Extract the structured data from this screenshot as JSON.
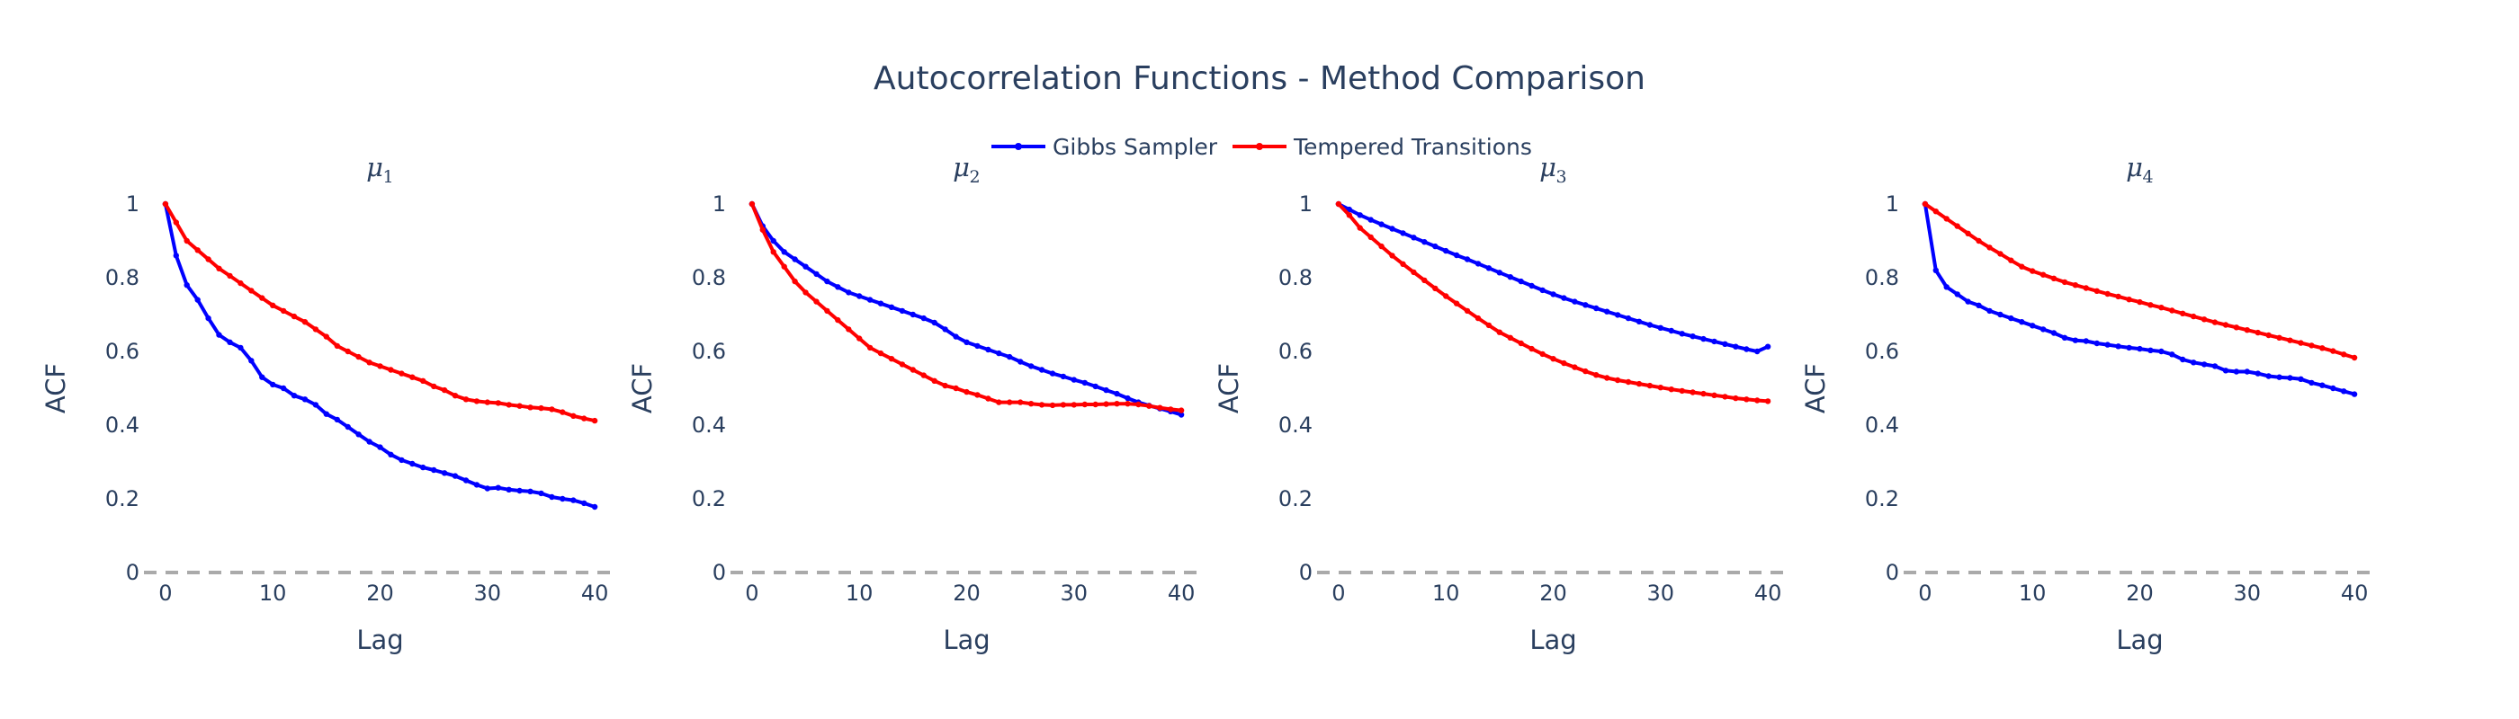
{
  "title": "Autocorrelation Functions - Method Comparison",
  "legend": [
    {
      "name": "Gibbs Sampler",
      "color": "#0000ff"
    },
    {
      "name": "Tempered Transitions",
      "color": "#ff0000"
    }
  ],
  "chart_data": [
    {
      "type": "line",
      "title_base": "μ",
      "title_sub": "1",
      "xlabel": "Lag",
      "ylabel": "ACF",
      "xlim": [
        -2,
        42
      ],
      "ylim": [
        0,
        1
      ],
      "xticks": [
        0,
        10,
        20,
        30,
        40
      ],
      "yticks": [
        0,
        0.2,
        0.4,
        0.6,
        0.8,
        1
      ],
      "ytick_labels": [
        "0",
        "0.2",
        "0.4",
        "0.6",
        "0.8",
        "1"
      ],
      "reference_line": {
        "y": 0,
        "style": "dashed"
      },
      "x": [
        0,
        1,
        2,
        3,
        4,
        5,
        6,
        7,
        8,
        9,
        10,
        11,
        12,
        13,
        14,
        15,
        16,
        17,
        18,
        19,
        20,
        21,
        22,
        23,
        24,
        25,
        26,
        27,
        28,
        29,
        30,
        31,
        32,
        33,
        34,
        35,
        36,
        37,
        38,
        39,
        40
      ],
      "series": [
        {
          "name": "Gibbs Sampler",
          "values": [
            1.0,
            0.86,
            0.78,
            0.74,
            0.69,
            0.645,
            0.625,
            0.61,
            0.575,
            0.53,
            0.51,
            0.5,
            0.48,
            0.47,
            0.455,
            0.43,
            0.415,
            0.395,
            0.375,
            0.355,
            0.34,
            0.32,
            0.305,
            0.295,
            0.285,
            0.278,
            0.27,
            0.262,
            0.25,
            0.238,
            0.228,
            0.23,
            0.225,
            0.222,
            0.22,
            0.215,
            0.205,
            0.2,
            0.196,
            0.188,
            0.178
          ]
        },
        {
          "name": "Tempered Transitions",
          "values": [
            1.0,
            0.95,
            0.9,
            0.875,
            0.85,
            0.825,
            0.805,
            0.785,
            0.765,
            0.745,
            0.725,
            0.71,
            0.695,
            0.68,
            0.66,
            0.64,
            0.615,
            0.6,
            0.585,
            0.57,
            0.56,
            0.55,
            0.54,
            0.53,
            0.52,
            0.505,
            0.495,
            0.48,
            0.47,
            0.465,
            0.462,
            0.46,
            0.455,
            0.452,
            0.448,
            0.446,
            0.443,
            0.435,
            0.425,
            0.418,
            0.412
          ]
        }
      ]
    },
    {
      "type": "line",
      "title_base": "μ",
      "title_sub": "2",
      "xlabel": "Lag",
      "ylabel": "ACF",
      "xlim": [
        -2,
        42
      ],
      "ylim": [
        0,
        1
      ],
      "xticks": [
        0,
        10,
        20,
        30,
        40
      ],
      "yticks": [
        0,
        0.2,
        0.4,
        0.6,
        0.8,
        1
      ],
      "ytick_labels": [
        "0",
        "0.2",
        "0.4",
        "0.6",
        "0.8",
        "1"
      ],
      "reference_line": {
        "y": 0,
        "style": "dashed"
      },
      "x": [
        0,
        1,
        2,
        3,
        4,
        5,
        6,
        7,
        8,
        9,
        10,
        11,
        12,
        13,
        14,
        15,
        16,
        17,
        18,
        19,
        20,
        21,
        22,
        23,
        24,
        25,
        26,
        27,
        28,
        29,
        30,
        31,
        32,
        33,
        34,
        35,
        36,
        37,
        38,
        39,
        40
      ],
      "series": [
        {
          "name": "Gibbs Sampler",
          "values": [
            1.0,
            0.94,
            0.9,
            0.87,
            0.85,
            0.83,
            0.81,
            0.79,
            0.775,
            0.76,
            0.75,
            0.74,
            0.73,
            0.72,
            0.71,
            0.7,
            0.69,
            0.678,
            0.66,
            0.64,
            0.625,
            0.615,
            0.605,
            0.595,
            0.585,
            0.572,
            0.56,
            0.55,
            0.54,
            0.532,
            0.523,
            0.515,
            0.505,
            0.495,
            0.485,
            0.473,
            0.462,
            0.453,
            0.445,
            0.437,
            0.428
          ]
        },
        {
          "name": "Tempered Transitions",
          "values": [
            1.0,
            0.93,
            0.87,
            0.83,
            0.79,
            0.76,
            0.735,
            0.71,
            0.685,
            0.66,
            0.635,
            0.61,
            0.595,
            0.58,
            0.565,
            0.55,
            0.535,
            0.52,
            0.507,
            0.5,
            0.49,
            0.482,
            0.472,
            0.462,
            0.462,
            0.462,
            0.458,
            0.455,
            0.454,
            0.455,
            0.455,
            0.456,
            0.456,
            0.457,
            0.458,
            0.458,
            0.456,
            0.452,
            0.447,
            0.443,
            0.44
          ]
        }
      ]
    },
    {
      "type": "line",
      "title_base": "μ",
      "title_sub": "3",
      "xlabel": "Lag",
      "ylabel": "ACF",
      "xlim": [
        -2,
        42
      ],
      "ylim": [
        0,
        1
      ],
      "xticks": [
        0,
        10,
        20,
        30,
        40
      ],
      "yticks": [
        0,
        0.2,
        0.4,
        0.6,
        0.8,
        1
      ],
      "ytick_labels": [
        "0",
        "0.2",
        "0.4",
        "0.6",
        "0.8",
        "1"
      ],
      "reference_line": {
        "y": 0,
        "style": "dashed"
      },
      "x": [
        0,
        1,
        2,
        3,
        4,
        5,
        6,
        7,
        8,
        9,
        10,
        11,
        12,
        13,
        14,
        15,
        16,
        17,
        18,
        19,
        20,
        21,
        22,
        23,
        24,
        25,
        26,
        27,
        28,
        29,
        30,
        31,
        32,
        33,
        34,
        35,
        36,
        37,
        38,
        39,
        40
      ],
      "series": [
        {
          "name": "Gibbs Sampler",
          "values": [
            1.0,
            0.985,
            0.97,
            0.957,
            0.945,
            0.933,
            0.921,
            0.909,
            0.897,
            0.885,
            0.873,
            0.861,
            0.85,
            0.838,
            0.826,
            0.814,
            0.802,
            0.79,
            0.778,
            0.766,
            0.755,
            0.745,
            0.735,
            0.726,
            0.717,
            0.708,
            0.699,
            0.69,
            0.681,
            0.672,
            0.664,
            0.656,
            0.648,
            0.641,
            0.634,
            0.627,
            0.62,
            0.613,
            0.606,
            0.6,
            0.613
          ]
        },
        {
          "name": "Tempered Transitions",
          "values": [
            1.0,
            0.97,
            0.935,
            0.91,
            0.885,
            0.86,
            0.837,
            0.815,
            0.793,
            0.771,
            0.75,
            0.73,
            0.71,
            0.69,
            0.671,
            0.652,
            0.637,
            0.622,
            0.607,
            0.593,
            0.58,
            0.568,
            0.557,
            0.546,
            0.536,
            0.528,
            0.522,
            0.517,
            0.512,
            0.507,
            0.502,
            0.497,
            0.493,
            0.489,
            0.485,
            0.481,
            0.477,
            0.473,
            0.47,
            0.467,
            0.465
          ]
        }
      ]
    },
    {
      "type": "line",
      "title_base": "μ",
      "title_sub": "4",
      "xlabel": "Lag",
      "ylabel": "ACF",
      "xlim": [
        -2,
        42
      ],
      "ylim": [
        0,
        1
      ],
      "xticks": [
        0,
        10,
        20,
        30,
        40
      ],
      "yticks": [
        0,
        0.2,
        0.4,
        0.6,
        0.8,
        1
      ],
      "ytick_labels": [
        "0",
        "0.2",
        "0.4",
        "0.6",
        "0.8",
        "1"
      ],
      "reference_line": {
        "y": 0,
        "style": "dashed"
      },
      "x": [
        0,
        1,
        2,
        3,
        4,
        5,
        6,
        7,
        8,
        9,
        10,
        11,
        12,
        13,
        14,
        15,
        16,
        17,
        18,
        19,
        20,
        21,
        22,
        23,
        24,
        25,
        26,
        27,
        28,
        29,
        30,
        31,
        32,
        33,
        34,
        35,
        36,
        37,
        38,
        39,
        40
      ],
      "series": [
        {
          "name": "Gibbs Sampler",
          "values": [
            1.0,
            0.82,
            0.775,
            0.755,
            0.735,
            0.725,
            0.71,
            0.7,
            0.69,
            0.68,
            0.67,
            0.66,
            0.65,
            0.637,
            0.63,
            0.628,
            0.622,
            0.618,
            0.614,
            0.61,
            0.607,
            0.603,
            0.6,
            0.592,
            0.578,
            0.57,
            0.565,
            0.56,
            0.548,
            0.545,
            0.545,
            0.54,
            0.533,
            0.53,
            0.528,
            0.525,
            0.515,
            0.508,
            0.5,
            0.492,
            0.484
          ]
        },
        {
          "name": "Tempered Transitions",
          "values": [
            1.0,
            0.98,
            0.96,
            0.94,
            0.92,
            0.9,
            0.882,
            0.865,
            0.847,
            0.83,
            0.818,
            0.808,
            0.798,
            0.788,
            0.78,
            0.772,
            0.764,
            0.756,
            0.749,
            0.741,
            0.734,
            0.726,
            0.719,
            0.711,
            0.703,
            0.695,
            0.687,
            0.679,
            0.672,
            0.665,
            0.658,
            0.651,
            0.644,
            0.637,
            0.63,
            0.623,
            0.616,
            0.609,
            0.601,
            0.592,
            0.583
          ]
        }
      ]
    }
  ]
}
